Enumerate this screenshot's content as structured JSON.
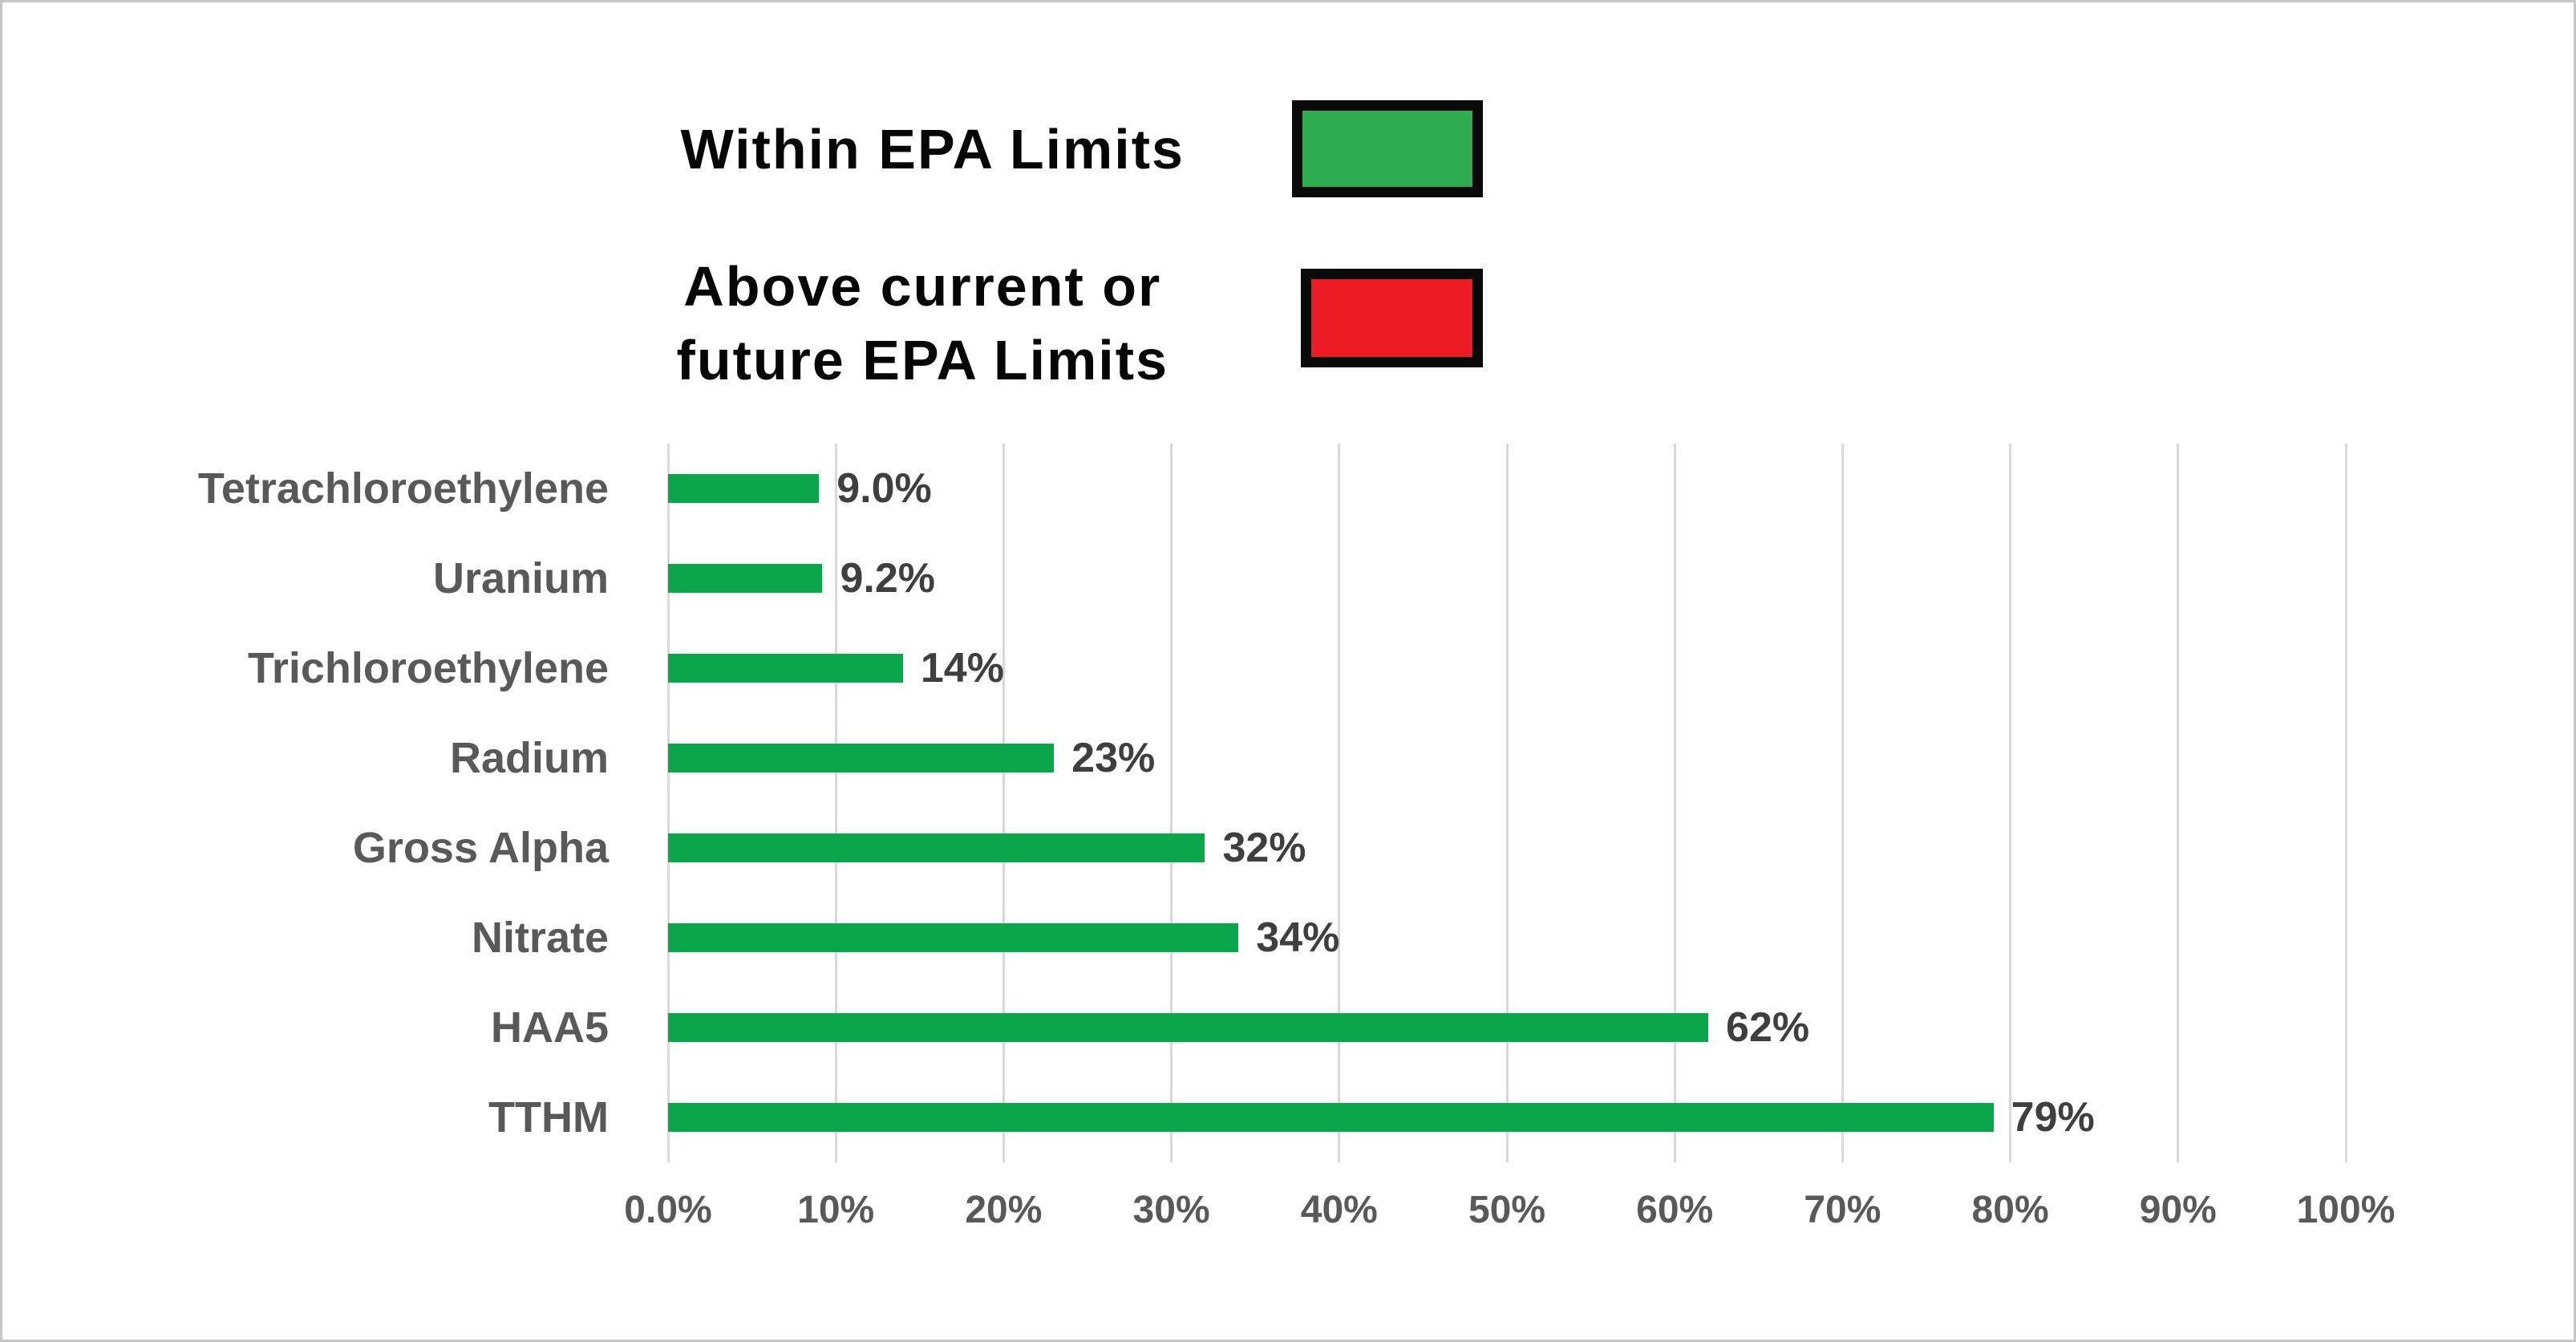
{
  "chart_data": {
    "type": "bar",
    "orientation": "horizontal",
    "categories": [
      "Tetrachloroethylene",
      "Uranium",
      "Trichloroethylene",
      "Radium",
      "Gross Alpha",
      "Nitrate",
      "HAA5",
      "TTHM"
    ],
    "values": [
      9.0,
      9.2,
      14,
      23,
      32,
      34,
      62,
      79
    ],
    "value_labels": [
      "9.0%",
      "9.2%",
      "14%",
      "23%",
      "32%",
      "34%",
      "62%",
      "79%"
    ],
    "x_tick_labels": [
      "0.0%",
      "10%",
      "20%",
      "30%",
      "40%",
      "50%",
      "60%",
      "70%",
      "80%",
      "90%",
      "100%"
    ],
    "x_tick_values": [
      0,
      10,
      20,
      30,
      40,
      50,
      60,
      70,
      80,
      90,
      100
    ],
    "xlim": [
      0,
      100
    ],
    "grid": "vertical-only",
    "legend_position": "top",
    "title": "",
    "xlabel": "",
    "ylabel": "",
    "bar_color": "#0aa64b",
    "legend": [
      {
        "label": "Within EPA Limits",
        "color": "#2fac52"
      },
      {
        "label": "Above current or future EPA Limits",
        "color": "#ec1b24"
      }
    ]
  },
  "legend": {
    "within_label": "Within EPA Limits",
    "above_label_line1": "Above current or",
    "above_label_line2": "future EPA Limits",
    "within_color": "#2fac52",
    "above_color": "#ec1b24",
    "swatch_border_color": "#0a0a0a"
  },
  "colors": {
    "bar": "#0aa64b",
    "gridline": "#d9d9d9",
    "category_label": "#595959",
    "value_label": "#3f3f3f",
    "axis_label": "#595959",
    "legend_text": "#060606",
    "background": "#ffffff"
  }
}
